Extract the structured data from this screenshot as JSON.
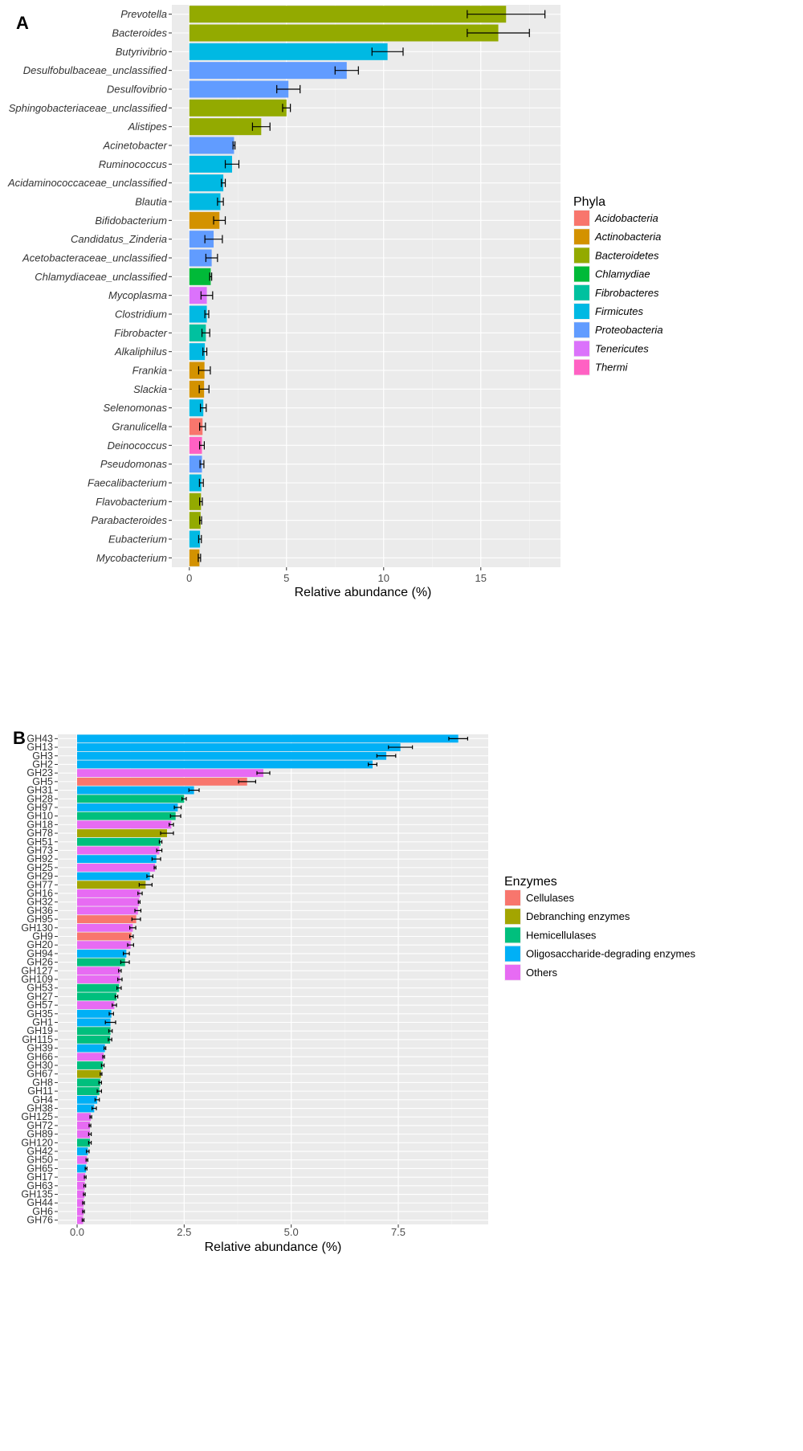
{
  "chart_data": [
    {
      "panel": "A",
      "type": "bar",
      "orientation": "horizontal",
      "xlabel": "Relative abundance (%)",
      "ylabel": "",
      "xlim": [
        -0.9,
        19.1
      ],
      "xticks": [
        0,
        5,
        10,
        15
      ],
      "xtick_labels": [
        "0",
        "5",
        "10",
        "15"
      ],
      "legend_title": "Phyla",
      "legend_position": "right",
      "groups": [
        {
          "name": "Acidobacteria",
          "color": "#F8766D"
        },
        {
          "name": "Actinobacteria",
          "color": "#D39200"
        },
        {
          "name": "Bacteroidetes",
          "color": "#93AA00"
        },
        {
          "name": "Chlamydiae",
          "color": "#00BA38"
        },
        {
          "name": "Fibrobacteres",
          "color": "#00C19F"
        },
        {
          "name": "Firmicutes",
          "color": "#00B9E3"
        },
        {
          "name": "Proteobacteria",
          "color": "#619CFF"
        },
        {
          "name": "Tenericutes",
          "color": "#DB72FB"
        },
        {
          "name": "Thermi",
          "color": "#FF61C3"
        }
      ],
      "bars": [
        {
          "label": "Prevotella",
          "value": 16.3,
          "error": 2.0,
          "group": "Bacteroidetes"
        },
        {
          "label": "Bacteroides",
          "value": 15.9,
          "error": 1.6,
          "group": "Bacteroidetes"
        },
        {
          "label": "Butyrivibrio",
          "value": 10.2,
          "error": 0.8,
          "group": "Firmicutes"
        },
        {
          "label": "Desulfobulbaceae_unclassified",
          "value": 8.1,
          "error": 0.6,
          "group": "Proteobacteria"
        },
        {
          "label": "Desulfovibrio",
          "value": 5.1,
          "error": 0.6,
          "group": "Proteobacteria"
        },
        {
          "label": "Sphingobacteriaceae_unclassified",
          "value": 5.0,
          "error": 0.2,
          "group": "Bacteroidetes"
        },
        {
          "label": "Alistipes",
          "value": 3.7,
          "error": 0.45,
          "group": "Bacteroidetes"
        },
        {
          "label": "Acinetobacter",
          "value": 2.3,
          "error": 0.05,
          "group": "Proteobacteria"
        },
        {
          "label": "Ruminococcus",
          "value": 2.2,
          "error": 0.35,
          "group": "Firmicutes"
        },
        {
          "label": "Acidaminococcaceae_unclassified",
          "value": 1.75,
          "error": 0.1,
          "group": "Firmicutes"
        },
        {
          "label": "Blautia",
          "value": 1.6,
          "error": 0.15,
          "group": "Firmicutes"
        },
        {
          "label": "Bifidobacterium",
          "value": 1.55,
          "error": 0.3,
          "group": "Actinobacteria"
        },
        {
          "label": "Candidatus_Zinderia",
          "value": 1.25,
          "error": 0.45,
          "group": "Proteobacteria"
        },
        {
          "label": "Acetobacteraceae_unclassified",
          "value": 1.15,
          "error": 0.3,
          "group": "Proteobacteria"
        },
        {
          "label": "Chlamydiaceae_unclassified",
          "value": 1.1,
          "error": 0.05,
          "group": "Chlamydiae"
        },
        {
          "label": "Mycoplasma",
          "value": 0.9,
          "error": 0.3,
          "group": "Tenericutes"
        },
        {
          "label": "Clostridium",
          "value": 0.9,
          "error": 0.1,
          "group": "Firmicutes"
        },
        {
          "label": "Fibrobacter",
          "value": 0.85,
          "error": 0.2,
          "group": "Fibrobacteres"
        },
        {
          "label": "Alkaliphilus",
          "value": 0.8,
          "error": 0.1,
          "group": "Firmicutes"
        },
        {
          "label": "Frankia",
          "value": 0.78,
          "error": 0.3,
          "group": "Actinobacteria"
        },
        {
          "label": "Slackia",
          "value": 0.76,
          "error": 0.25,
          "group": "Actinobacteria"
        },
        {
          "label": "Selenomonas",
          "value": 0.72,
          "error": 0.15,
          "group": "Firmicutes"
        },
        {
          "label": "Granulicella",
          "value": 0.68,
          "error": 0.15,
          "group": "Acidobacteria"
        },
        {
          "label": "Deinococcus",
          "value": 0.65,
          "error": 0.12,
          "group": "Thermi"
        },
        {
          "label": "Pseudomonas",
          "value": 0.65,
          "error": 0.1,
          "group": "Proteobacteria"
        },
        {
          "label": "Faecalibacterium",
          "value": 0.62,
          "error": 0.1,
          "group": "Firmicutes"
        },
        {
          "label": "Flavobacterium",
          "value": 0.6,
          "error": 0.07,
          "group": "Bacteroidetes"
        },
        {
          "label": "Parabacteroides",
          "value": 0.58,
          "error": 0.05,
          "group": "Bacteroidetes"
        },
        {
          "label": "Eubacterium",
          "value": 0.55,
          "error": 0.07,
          "group": "Firmicutes"
        },
        {
          "label": "Mycobacterium",
          "value": 0.52,
          "error": 0.06,
          "group": "Actinobacteria"
        }
      ]
    },
    {
      "panel": "B",
      "type": "bar",
      "orientation": "horizontal",
      "xlabel": "Relative abundance (%)",
      "ylabel": "",
      "xlim": [
        -0.45,
        9.6
      ],
      "xticks": [
        0,
        2.5,
        5,
        7.5
      ],
      "xtick_labels": [
        "0.0",
        "2.5",
        "5.0",
        "7.5"
      ],
      "legend_title": "Enzymes",
      "legend_position": "right",
      "groups": [
        {
          "name": "Cellulases",
          "color": "#F8766D"
        },
        {
          "name": "Debranching enzymes",
          "color": "#A3A500"
        },
        {
          "name": "Hemicellulases",
          "color": "#00BF7D"
        },
        {
          "name": "Oligosaccharide-degrading enzymes",
          "color": "#00B0F6"
        },
        {
          "name": "Others",
          "color": "#E76BF3"
        }
      ],
      "bars": [
        {
          "label": "GH43",
          "value": 8.9,
          "error": 0.22,
          "group": "Oligosaccharide-degrading enzymes"
        },
        {
          "label": "GH13",
          "value": 7.55,
          "error": 0.28,
          "group": "Oligosaccharide-degrading enzymes"
        },
        {
          "label": "GH3",
          "value": 7.22,
          "error": 0.22,
          "group": "Oligosaccharide-degrading enzymes"
        },
        {
          "label": "GH2",
          "value": 6.9,
          "error": 0.1,
          "group": "Oligosaccharide-degrading enzymes"
        },
        {
          "label": "GH23",
          "value": 4.35,
          "error": 0.15,
          "group": "Others"
        },
        {
          "label": "GH5",
          "value": 3.97,
          "error": 0.2,
          "group": "Cellulases"
        },
        {
          "label": "GH31",
          "value": 2.73,
          "error": 0.12,
          "group": "Oligosaccharide-degrading enzymes"
        },
        {
          "label": "GH28",
          "value": 2.5,
          "error": 0.05,
          "group": "Hemicellulases"
        },
        {
          "label": "GH97",
          "value": 2.35,
          "error": 0.08,
          "group": "Oligosaccharide-degrading enzymes"
        },
        {
          "label": "GH10",
          "value": 2.3,
          "error": 0.12,
          "group": "Hemicellulases"
        },
        {
          "label": "GH18",
          "value": 2.2,
          "error": 0.05,
          "group": "Others"
        },
        {
          "label": "GH78",
          "value": 2.1,
          "error": 0.15,
          "group": "Debranching enzymes"
        },
        {
          "label": "GH51",
          "value": 1.95,
          "error": 0.03,
          "group": "Hemicellulases"
        },
        {
          "label": "GH73",
          "value": 1.92,
          "error": 0.06,
          "group": "Others"
        },
        {
          "label": "GH92",
          "value": 1.85,
          "error": 0.1,
          "group": "Oligosaccharide-degrading enzymes"
        },
        {
          "label": "GH25",
          "value": 1.82,
          "error": 0.02,
          "group": "Others"
        },
        {
          "label": "GH29",
          "value": 1.7,
          "error": 0.07,
          "group": "Oligosaccharide-degrading enzymes"
        },
        {
          "label": "GH77",
          "value": 1.6,
          "error": 0.15,
          "group": "Debranching enzymes"
        },
        {
          "label": "GH16",
          "value": 1.47,
          "error": 0.05,
          "group": "Others"
        },
        {
          "label": "GH32",
          "value": 1.45,
          "error": 0.02,
          "group": "Others"
        },
        {
          "label": "GH36",
          "value": 1.42,
          "error": 0.07,
          "group": "Others"
        },
        {
          "label": "GH95",
          "value": 1.38,
          "error": 0.1,
          "group": "Cellulases"
        },
        {
          "label": "GH130",
          "value": 1.3,
          "error": 0.07,
          "group": "Others"
        },
        {
          "label": "GH9",
          "value": 1.27,
          "error": 0.04,
          "group": "Cellulases"
        },
        {
          "label": "GH20",
          "value": 1.25,
          "error": 0.07,
          "group": "Others"
        },
        {
          "label": "GH94",
          "value": 1.15,
          "error": 0.07,
          "group": "Oligosaccharide-degrading enzymes"
        },
        {
          "label": "GH26",
          "value": 1.12,
          "error": 0.1,
          "group": "Hemicellulases"
        },
        {
          "label": "GH127",
          "value": 1.0,
          "error": 0.03,
          "group": "Others"
        },
        {
          "label": "GH109",
          "value": 1.0,
          "error": 0.05,
          "group": "Others"
        },
        {
          "label": "GH53",
          "value": 0.98,
          "error": 0.05,
          "group": "Hemicellulases"
        },
        {
          "label": "GH27",
          "value": 0.92,
          "error": 0.03,
          "group": "Hemicellulases"
        },
        {
          "label": "GH57",
          "value": 0.87,
          "error": 0.05,
          "group": "Others"
        },
        {
          "label": "GH35",
          "value": 0.8,
          "error": 0.05,
          "group": "Oligosaccharide-degrading enzymes"
        },
        {
          "label": "GH1",
          "value": 0.78,
          "error": 0.12,
          "group": "Oligosaccharide-degrading enzymes"
        },
        {
          "label": "GH19",
          "value": 0.78,
          "error": 0.04,
          "group": "Hemicellulases"
        },
        {
          "label": "GH115",
          "value": 0.77,
          "error": 0.04,
          "group": "Hemicellulases"
        },
        {
          "label": "GH39",
          "value": 0.65,
          "error": 0.02,
          "group": "Oligosaccharide-degrading enzymes"
        },
        {
          "label": "GH66",
          "value": 0.62,
          "error": 0.02,
          "group": "Others"
        },
        {
          "label": "GH30",
          "value": 0.6,
          "error": 0.03,
          "group": "Hemicellulases"
        },
        {
          "label": "GH67",
          "value": 0.56,
          "error": 0.02,
          "group": "Debranching enzymes"
        },
        {
          "label": "GH8",
          "value": 0.54,
          "error": 0.03,
          "group": "Hemicellulases"
        },
        {
          "label": "GH11",
          "value": 0.52,
          "error": 0.05,
          "group": "Hemicellulases"
        },
        {
          "label": "GH4",
          "value": 0.47,
          "error": 0.05,
          "group": "Oligosaccharide-degrading enzymes"
        },
        {
          "label": "GH38",
          "value": 0.4,
          "error": 0.05,
          "group": "Oligosaccharide-degrading enzymes"
        },
        {
          "label": "GH125",
          "value": 0.32,
          "error": 0.02,
          "group": "Others"
        },
        {
          "label": "GH72",
          "value": 0.3,
          "error": 0.02,
          "group": "Others"
        },
        {
          "label": "GH89",
          "value": 0.3,
          "error": 0.03,
          "group": "Others"
        },
        {
          "label": "GH120",
          "value": 0.3,
          "error": 0.03,
          "group": "Hemicellulases"
        },
        {
          "label": "GH42",
          "value": 0.25,
          "error": 0.03,
          "group": "Oligosaccharide-degrading enzymes"
        },
        {
          "label": "GH50",
          "value": 0.23,
          "error": 0.02,
          "group": "Others"
        },
        {
          "label": "GH65",
          "value": 0.21,
          "error": 0.02,
          "group": "Oligosaccharide-degrading enzymes"
        },
        {
          "label": "GH17",
          "value": 0.19,
          "error": 0.02,
          "group": "Others"
        },
        {
          "label": "GH63",
          "value": 0.18,
          "error": 0.02,
          "group": "Others"
        },
        {
          "label": "GH135",
          "value": 0.17,
          "error": 0.02,
          "group": "Others"
        },
        {
          "label": "GH44",
          "value": 0.15,
          "error": 0.02,
          "group": "Others"
        },
        {
          "label": "GH6",
          "value": 0.15,
          "error": 0.02,
          "group": "Others"
        },
        {
          "label": "GH76",
          "value": 0.14,
          "error": 0.02,
          "group": "Others"
        }
      ]
    }
  ]
}
